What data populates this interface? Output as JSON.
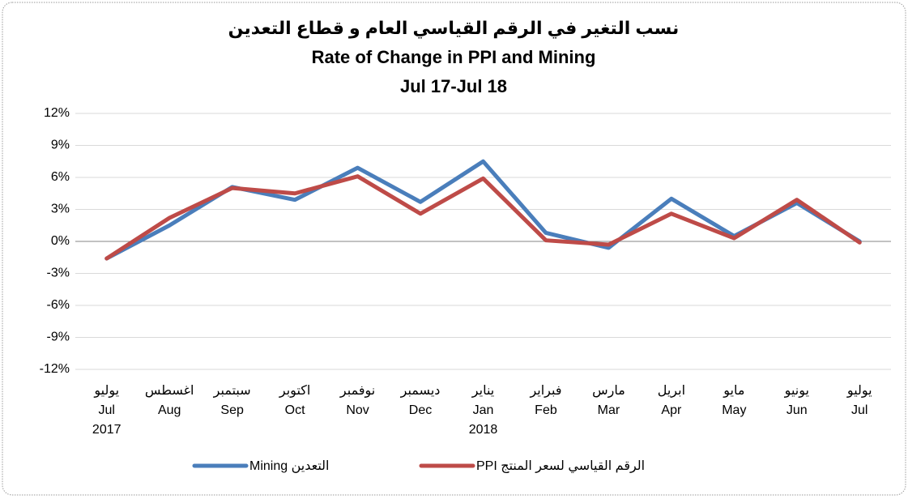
{
  "chart_data": {
    "type": "line",
    "title": [
      "نسب التغير في الرقم القياسي العام و قطاع التعدين",
      "Rate of Change in PPI and Mining",
      "Jul 17-Jul 18"
    ],
    "categories": [
      [
        "يوليو",
        "Jul",
        "2017"
      ],
      [
        "اغسطس",
        "Aug"
      ],
      [
        "سبتمبر",
        "Sep"
      ],
      [
        "اكتوبر",
        "Oct"
      ],
      [
        "نوفمبر",
        "Nov"
      ],
      [
        "ديسمبر",
        "Dec"
      ],
      [
        "يناير",
        "Jan",
        "2018"
      ],
      [
        "فبراير",
        "Feb"
      ],
      [
        "مارس",
        "Mar"
      ],
      [
        "ابريل",
        "Apr"
      ],
      [
        "مايو",
        "May"
      ],
      [
        "يونيو",
        "Jun"
      ],
      [
        "يوليو",
        "Jul"
      ]
    ],
    "series": [
      {
        "name": "Mining التعدين",
        "color": "#4a7ebb",
        "values": [
          -1.6,
          1.5,
          5.1,
          3.9,
          6.9,
          3.7,
          7.5,
          0.8,
          -0.6,
          4.0,
          0.5,
          3.6,
          0
        ]
      },
      {
        "name": "PPI الرقم القياسي لسعر المنتج",
        "color": "#be4b48",
        "values": [
          -1.6,
          2.2,
          5.0,
          4.5,
          6.1,
          2.6,
          5.9,
          0.1,
          -0.3,
          2.6,
          0.3,
          3.9,
          -0.1
        ]
      }
    ],
    "ylim": [
      -12,
      12
    ],
    "yticks": [
      {
        "value": -12,
        "label": "-12%"
      },
      {
        "value": -9,
        "label": "-9%"
      },
      {
        "value": -6,
        "label": "-6%"
      },
      {
        "value": -3,
        "label": "-3%"
      },
      {
        "value": 0,
        "label": "0%"
      },
      {
        "value": 3,
        "label": "3%"
      },
      {
        "value": 6,
        "label": "6%"
      },
      {
        "value": 9,
        "label": "9%"
      },
      {
        "value": 12,
        "label": "12%"
      }
    ],
    "grid": true,
    "legend": "bottom"
  }
}
